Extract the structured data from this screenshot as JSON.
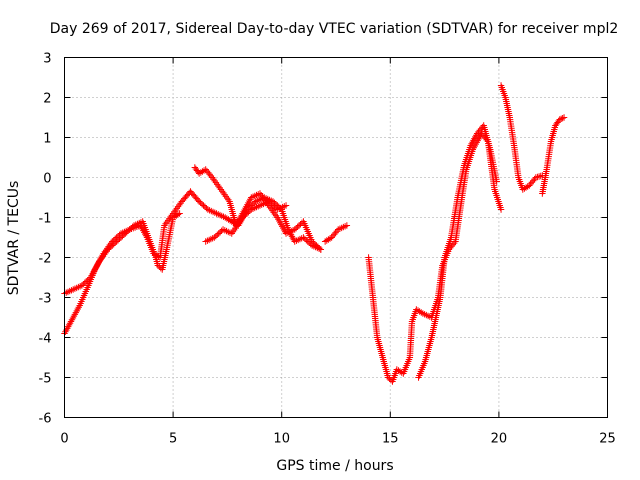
{
  "chart_data": {
    "type": "scatter",
    "title": "Day 269 of 2017, Sidereal Day-to-day VTEC variation (SDTVAR) for receiver mpl2",
    "xlabel": "GPS time / hours",
    "ylabel": "SDTVAR / TECUs",
    "xlim": [
      0,
      25
    ],
    "ylim": [
      -6,
      3
    ],
    "xticks": [
      0,
      5,
      10,
      15,
      20,
      25
    ],
    "yticks": [
      -6,
      -5,
      -4,
      -3,
      -2,
      -1,
      0,
      1,
      2,
      3
    ],
    "xtick_labels": [
      "0",
      "5",
      "10",
      "15",
      "20",
      "25"
    ],
    "ytick_labels": [
      "-6",
      "-5",
      "-4",
      "-3",
      "-2",
      "-1",
      "0",
      "1",
      "2",
      "3"
    ],
    "grid": true,
    "legend": "none",
    "marker": "plus",
    "color": "#ff0000",
    "series": [
      {
        "tracks": [
          [
            [
              0.0,
              -3.9
            ],
            [
              0.3,
              -3.6
            ],
            [
              0.7,
              -3.2
            ],
            [
              1.1,
              -2.7
            ],
            [
              1.4,
              -2.3
            ],
            [
              1.8,
              -1.9
            ],
            [
              2.2,
              -1.6
            ],
            [
              2.6,
              -1.4
            ],
            [
              3.0,
              -1.3
            ],
            [
              3.5,
              -1.2
            ],
            [
              3.8,
              -1.5
            ],
            [
              4.1,
              -1.9
            ],
            [
              4.4,
              -2.0
            ],
            [
              4.6,
              -1.2
            ],
            [
              5.0,
              -0.9
            ],
            [
              5.4,
              -0.6
            ],
            [
              5.8,
              -0.35
            ],
            [
              6.2,
              -0.6
            ],
            [
              6.6,
              -0.8
            ],
            [
              7.0,
              -0.9
            ],
            [
              7.4,
              -1.0
            ],
            [
              7.7,
              -1.1
            ],
            [
              8.0,
              -1.2
            ],
            [
              8.4,
              -0.8
            ],
            [
              8.8,
              -0.6
            ],
            [
              9.2,
              -0.5
            ],
            [
              9.6,
              -0.6
            ],
            [
              10.0,
              -0.8
            ],
            [
              10.3,
              -1.3
            ],
            [
              10.6,
              -1.6
            ],
            [
              11.0,
              -1.5
            ],
            [
              11.4,
              -1.7
            ],
            [
              11.8,
              -1.8
            ]
          ],
          [
            [
              0.0,
              -2.9
            ],
            [
              0.4,
              -2.8
            ],
            [
              0.8,
              -2.7
            ],
            [
              1.2,
              -2.5
            ],
            [
              1.6,
              -2.1
            ],
            [
              2.0,
              -1.8
            ],
            [
              2.4,
              -1.6
            ],
            [
              2.8,
              -1.4
            ],
            [
              3.2,
              -1.2
            ],
            [
              3.6,
              -1.1
            ],
            [
              3.8,
              -1.4
            ],
            [
              4.2,
              -2.0
            ],
            [
              4.3,
              -2.2
            ],
            [
              4.5,
              -2.3
            ],
            [
              4.7,
              -1.8
            ],
            [
              5.0,
              -1.0
            ],
            [
              5.3,
              -0.9
            ]
          ],
          [
            [
              6.0,
              0.25
            ],
            [
              6.2,
              0.1
            ],
            [
              6.5,
              0.2
            ],
            [
              6.8,
              0.0
            ],
            [
              7.2,
              -0.3
            ],
            [
              7.6,
              -0.6
            ],
            [
              7.9,
              -1.2
            ],
            [
              8.2,
              -0.9
            ],
            [
              8.6,
              -0.5
            ],
            [
              9.0,
              -0.4
            ],
            [
              9.4,
              -0.7
            ],
            [
              9.8,
              -1.0
            ],
            [
              10.2,
              -1.4
            ],
            [
              10.6,
              -1.3
            ],
            [
              11.0,
              -1.1
            ],
            [
              11.4,
              -1.6
            ],
            [
              11.8,
              -1.8
            ]
          ],
          [
            [
              6.5,
              -1.6
            ],
            [
              6.9,
              -1.5
            ],
            [
              7.3,
              -1.3
            ],
            [
              7.7,
              -1.4
            ],
            [
              8.2,
              -1.0
            ],
            [
              8.6,
              -0.8
            ],
            [
              9.0,
              -0.7
            ],
            [
              9.4,
              -0.6
            ],
            [
              9.8,
              -0.8
            ],
            [
              10.2,
              -0.7
            ]
          ],
          [
            [
              12.0,
              -1.6
            ],
            [
              12.3,
              -1.5
            ],
            [
              12.6,
              -1.3
            ],
            [
              13.0,
              -1.2
            ]
          ],
          [
            [
              14.0,
              -2.0
            ],
            [
              14.2,
              -3.0
            ],
            [
              14.4,
              -4.0
            ],
            [
              14.7,
              -4.6
            ],
            [
              14.9,
              -5.0
            ],
            [
              15.1,
              -5.1
            ],
            [
              15.3,
              -4.8
            ],
            [
              15.6,
              -4.9
            ],
            [
              15.9,
              -4.5
            ],
            [
              16.0,
              -3.6
            ],
            [
              16.2,
              -3.3
            ],
            [
              16.5,
              -3.4
            ],
            [
              16.9,
              -3.5
            ],
            [
              17.2,
              -3.0
            ],
            [
              17.4,
              -2.2
            ],
            [
              17.7,
              -1.8
            ],
            [
              18.0,
              -1.6
            ],
            [
              18.3,
              -0.5
            ],
            [
              18.5,
              0.2
            ],
            [
              18.8,
              0.7
            ],
            [
              19.2,
              1.1
            ],
            [
              19.5,
              0.9
            ],
            [
              19.8,
              -0.3
            ],
            [
              20.1,
              -0.8
            ]
          ],
          [
            [
              16.3,
              -5.0
            ],
            [
              16.6,
              -4.6
            ],
            [
              16.9,
              -4.0
            ],
            [
              17.1,
              -3.5
            ],
            [
              17.3,
              -3.0
            ],
            [
              17.5,
              -2.0
            ],
            [
              17.8,
              -1.5
            ],
            [
              18.1,
              -0.5
            ],
            [
              18.4,
              0.3
            ],
            [
              18.7,
              0.8
            ],
            [
              19.0,
              1.1
            ],
            [
              19.3,
              1.3
            ],
            [
              19.6,
              0.7
            ],
            [
              19.9,
              -0.1
            ]
          ],
          [
            [
              20.1,
              2.3
            ],
            [
              20.3,
              2.0
            ],
            [
              20.5,
              1.5
            ],
            [
              20.7,
              0.8
            ],
            [
              20.9,
              0.0
            ],
            [
              21.1,
              -0.3
            ],
            [
              21.4,
              -0.2
            ],
            [
              21.7,
              0.0
            ],
            [
              22.0,
              0.05
            ]
          ],
          [
            [
              22.0,
              -0.4
            ],
            [
              22.2,
              0.2
            ],
            [
              22.4,
              0.9
            ],
            [
              22.6,
              1.3
            ],
            [
              22.8,
              1.45
            ],
            [
              23.0,
              1.5
            ]
          ]
        ]
      }
    ]
  }
}
